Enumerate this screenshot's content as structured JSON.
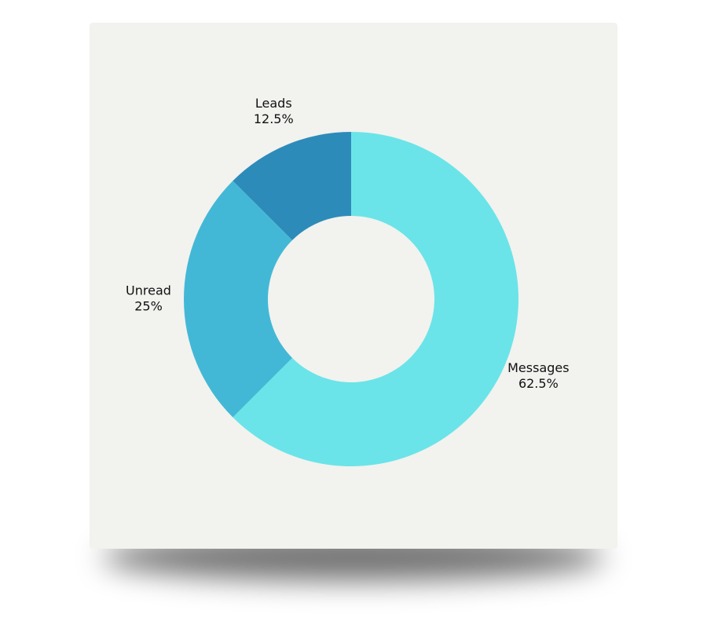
{
  "chart_data": {
    "type": "donut",
    "categories": [
      "Messages",
      "Unread",
      "Leads"
    ],
    "values": [
      62.5,
      25,
      12.5
    ],
    "value_labels": [
      "62.5%",
      "25%",
      "12.5%"
    ],
    "colors": [
      "#6ae4e8",
      "#43b8d6",
      "#2d8bba"
    ]
  }
}
